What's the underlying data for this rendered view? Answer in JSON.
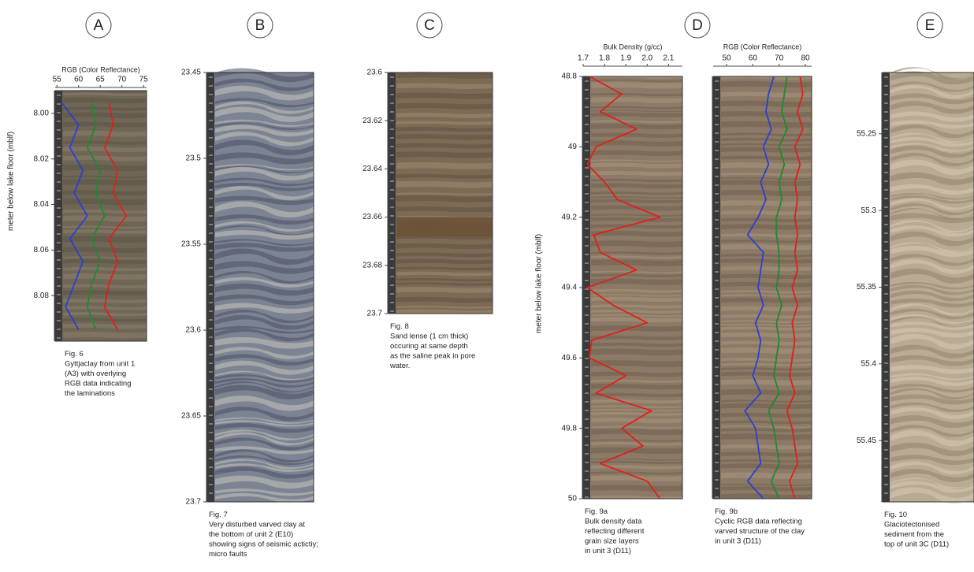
{
  "letters": [
    "A",
    "B",
    "C",
    "D",
    "E"
  ],
  "ylabel": "meter below lake floor (mblf)",
  "plots": [
    {
      "title": "RGB (Color Reflectance)",
      "xlim": [
        54.6,
        75.7
      ],
      "xticks": [
        55,
        60,
        65,
        70,
        75
      ],
      "ylim": [
        7.99,
        8.1
      ],
      "yticks": [
        {
          "value": 8,
          "label": "8.00"
        },
        {
          "value": 8.02,
          "label": "8.02"
        },
        {
          "value": 8.04,
          "label": "8.04"
        },
        {
          "value": 8.06,
          "label": "8.06"
        },
        {
          "value": 8.08,
          "label": "8.08"
        }
      ],
      "depth": [
        7.995,
        8.005,
        8.015,
        8.025,
        8.035,
        8.045,
        8.055,
        8.065,
        8.075,
        8.085,
        8.095
      ],
      "series": [
        {
          "color": "#2b3fd6",
          "values": [
            56,
            60,
            58,
            61,
            59,
            62,
            58,
            61,
            59,
            57,
            60
          ]
        },
        {
          "color": "#1f8a2e",
          "values": [
            63,
            64,
            62,
            65,
            64,
            66,
            63,
            65,
            63,
            62,
            64
          ]
        },
        {
          "color": "#e0201c",
          "values": [
            67,
            68,
            66,
            69,
            68,
            71,
            67,
            69,
            67,
            66,
            69
          ]
        }
      ],
      "caption": [
        "Fig. 6",
        "Gyttjaclay from unit 1",
        "(A3) with overlying",
        "RGB data indicating",
        "the laminations"
      ]
    },
    {
      "ylim": [
        23.45,
        23.7
      ],
      "yticks": [
        23.45,
        23.5,
        23.55,
        23.6,
        23.65,
        23.7
      ],
      "caption": [
        "Fig. 7",
        "Very disturbed varved clay at",
        "the bottom of unit 2 (E10)",
        "showing signs of seismic actictiy;",
        "micro faults"
      ]
    },
    {
      "ylim": [
        23.6,
        23.7
      ],
      "yticks": [
        23.6,
        23.62,
        23.64,
        23.66,
        23.68,
        23.7
      ],
      "caption": [
        "Fig. 8",
        "Sand lense (1 cm thick)",
        "occuring at same depth",
        "as the saline peak in pore",
        "water."
      ]
    },
    {
      "title": "Bulk Density (g/cc)",
      "xlim": [
        1.7,
        2.165
      ],
      "xticks": [
        1.7,
        1.8,
        1.9,
        {
          "value": 2,
          "label": "2.0"
        },
        2.1
      ],
      "ylim": [
        48.8,
        50
      ],
      "yticks": [
        48.8,
        49,
        49.2,
        49.4,
        49.6,
        49.8,
        50
      ],
      "depth": [
        48.8,
        48.85,
        48.9,
        48.95,
        49,
        49.05,
        49.1,
        49.15,
        49.2,
        49.25,
        49.3,
        49.35,
        49.4,
        49.45,
        49.5,
        49.55,
        49.6,
        49.65,
        49.7,
        49.75,
        49.8,
        49.85,
        49.9,
        49.95,
        50
      ],
      "series": [
        {
          "color": "#e0201c",
          "values": [
            1.73,
            1.88,
            1.78,
            1.95,
            1.76,
            1.72,
            1.8,
            1.86,
            2.06,
            1.75,
            1.78,
            1.95,
            1.72,
            1.84,
            2.0,
            1.74,
            1.73,
            1.9,
            1.76,
            2.02,
            1.88,
            1.98,
            1.78,
            2.0,
            2.06
          ]
        }
      ],
      "caption": [
        "Fig. 9a",
        "Bulk density data",
        "reflecting different",
        "grain size layers",
        "in unit 3 (D11)"
      ]
    },
    {
      "title": "RGB (Color Reflectance)",
      "xlim": [
        44.9,
        82.4
      ],
      "xticks": [
        50,
        60,
        70,
        80
      ],
      "ylim": [
        48.8,
        50
      ],
      "depth": [
        48.8,
        48.85,
        48.9,
        48.95,
        49,
        49.05,
        49.1,
        49.15,
        49.2,
        49.25,
        49.3,
        49.35,
        49.4,
        49.45,
        49.5,
        49.55,
        49.6,
        49.65,
        49.7,
        49.75,
        49.8,
        49.85,
        49.9,
        49.95,
        50
      ],
      "series": [
        {
          "color": "#2b3fd6",
          "values": [
            68,
            66,
            65,
            67,
            64,
            66,
            63,
            65,
            62,
            58,
            64,
            63,
            62,
            64,
            61,
            63,
            62,
            60,
            63,
            57,
            61,
            62,
            63,
            58,
            64
          ]
        },
        {
          "color": "#1f8a2e",
          "values": [
            73,
            72,
            71,
            73,
            70,
            72,
            70,
            71,
            69,
            69,
            70,
            70,
            69,
            71,
            69,
            70,
            69,
            68,
            70,
            66,
            68,
            69,
            70,
            67,
            70
          ]
        },
        {
          "color": "#e0201c",
          "values": [
            78,
            79,
            77,
            79,
            76,
            78,
            76,
            77,
            76,
            77,
            76,
            77,
            75,
            77,
            75,
            76,
            75,
            74,
            76,
            73,
            75,
            76,
            77,
            74,
            76
          ]
        }
      ],
      "caption": [
        "Fig. 9b",
        "Cyclic RGB data reflecting",
        "varved structure of the clay",
        "in unit 3 (D11)"
      ]
    },
    {
      "ylim": [
        55.21,
        55.49
      ],
      "yticks": [
        55.25,
        55.3,
        55.35,
        55.4,
        55.45
      ],
      "caption": [
        "Fig. 10",
        "Glaciotectonised",
        "sediment from the",
        "top of unit 3C (D11)"
      ]
    }
  ]
}
